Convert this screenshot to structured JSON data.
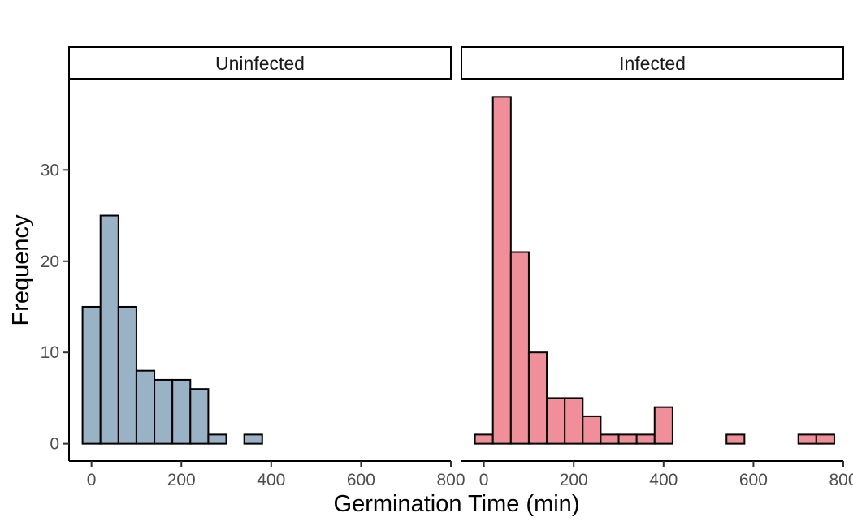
{
  "chart_data": {
    "type": "bar",
    "subtype": "faceted-histogram",
    "xlabel": "Germination Time (min)",
    "ylabel": "Frequency",
    "xlim": [
      -50,
      800
    ],
    "ylim": [
      -1.9,
      39.9
    ],
    "x_ticks": [
      0,
      200,
      400,
      600,
      800
    ],
    "y_ticks": [
      0,
      10,
      20,
      30
    ],
    "binwidth": 40,
    "grid": false,
    "facets": [
      {
        "label": "Uninfected",
        "color": "#9AB2C5",
        "bin_starts": [
          -20,
          20,
          60,
          100,
          140,
          180,
          220,
          260,
          300,
          340,
          380,
          420,
          460,
          500,
          540,
          580,
          620,
          660,
          700,
          740
        ],
        "values": [
          15,
          25,
          15,
          8,
          7,
          7,
          6,
          1,
          0,
          1,
          0,
          0,
          0,
          0,
          0,
          0,
          0,
          0,
          0,
          0
        ]
      },
      {
        "label": "Infected",
        "color": "#F08F99",
        "bin_starts": [
          -20,
          20,
          60,
          100,
          140,
          180,
          220,
          260,
          300,
          340,
          380,
          420,
          460,
          500,
          540,
          580,
          620,
          660,
          700,
          740
        ],
        "values": [
          1,
          38,
          21,
          10,
          5,
          5,
          3,
          1,
          1,
          1,
          4,
          0,
          0,
          0,
          1,
          0,
          0,
          0,
          1,
          1
        ]
      }
    ]
  }
}
